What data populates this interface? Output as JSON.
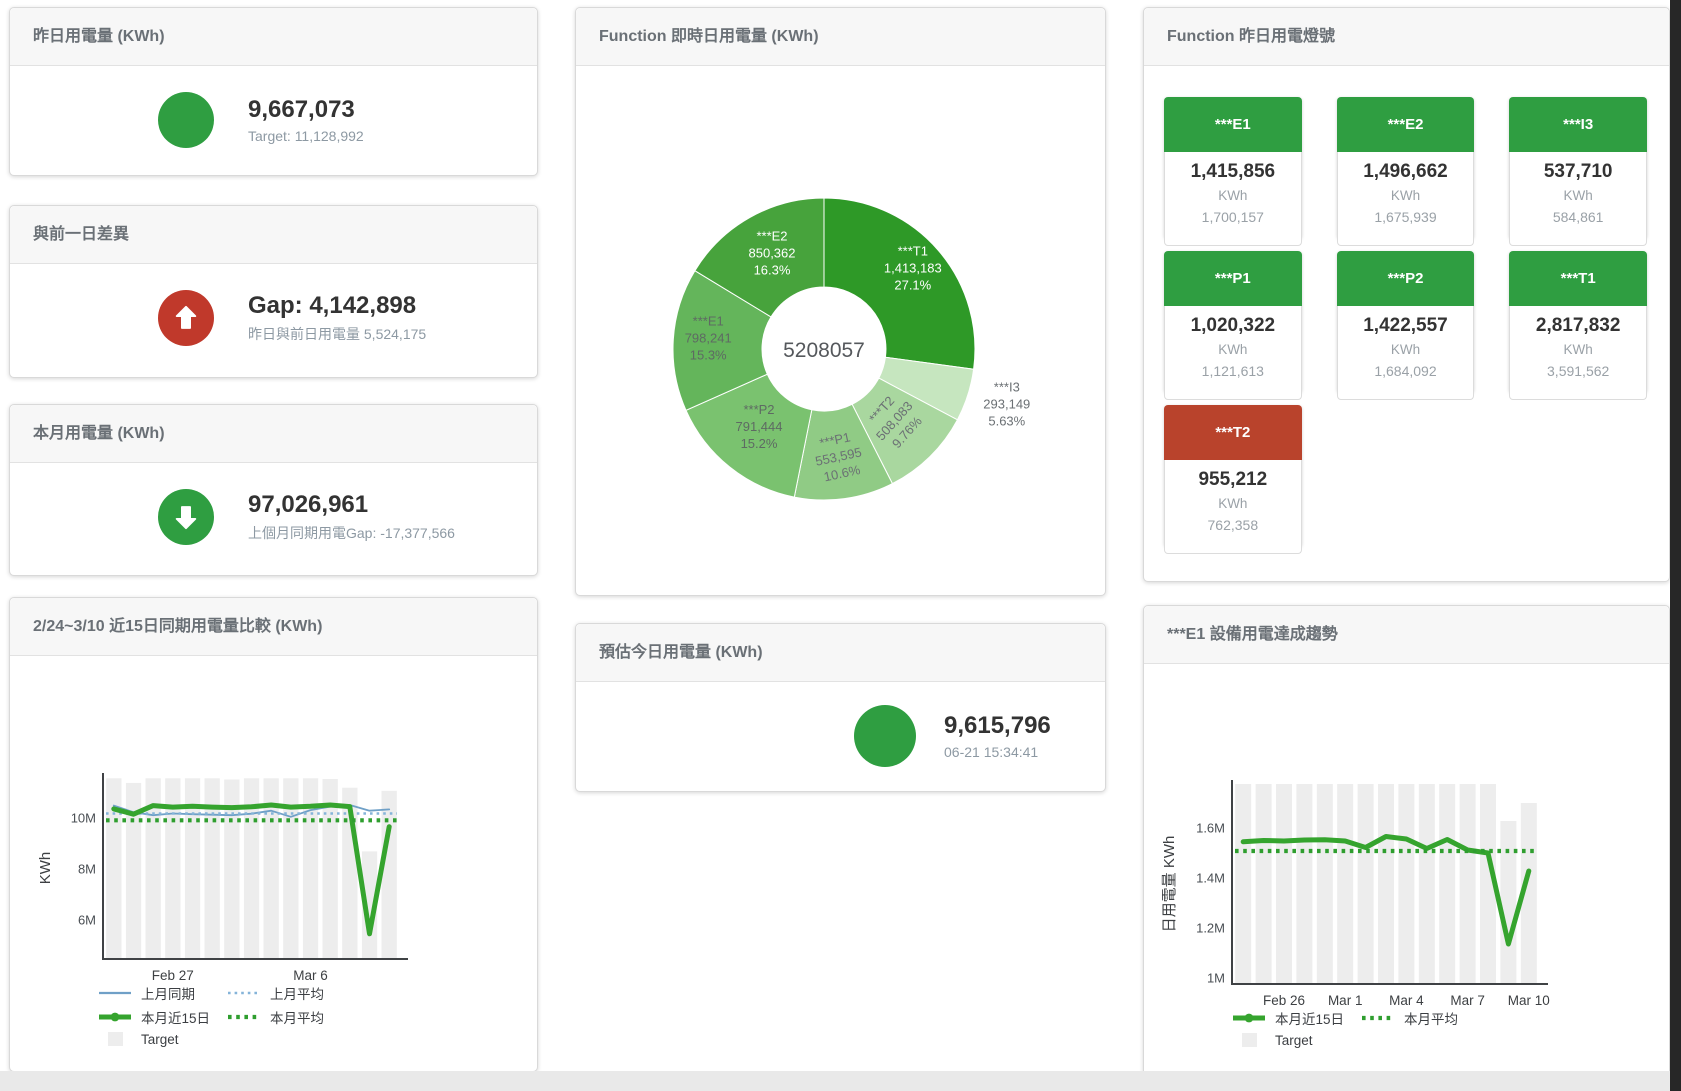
{
  "colors": {
    "green": "#2f9e41",
    "red": "#c0392b",
    "chart_green": "#35a42e",
    "chart_green_avg": "#2f9e2f",
    "chart_blue": "#6fa0c7",
    "chart_blue_avg": "#85b4d9",
    "target_bar": "#ededed"
  },
  "stat_panels": {
    "yesterday": {
      "title": "昨日用電量 (KWh)",
      "value": "9,667,073",
      "subtext": "Target: 11,128,992"
    },
    "day_gap": {
      "title": "與前一日差異",
      "value": "Gap: 4,142,898",
      "subtext": "昨日與前日用電量 5,524,175"
    },
    "month": {
      "title": "本月用電量 (KWh)",
      "value": "97,026,961",
      "subtext": "上個月同期用電Gap: -17,377,566"
    },
    "forecast": {
      "title": "預估今日用電量 (KWh)",
      "value": "9,615,796",
      "subtext": "06-21 15:34:41"
    }
  },
  "lights": {
    "title": "Function 昨日用電燈號",
    "tiles": [
      {
        "name": "***E1",
        "value": "1,415,856",
        "unit": "KWh",
        "target": "1,700,157",
        "status": "green"
      },
      {
        "name": "***E2",
        "value": "1,496,662",
        "unit": "KWh",
        "target": "1,675,939",
        "status": "green"
      },
      {
        "name": "***I3",
        "value": "537,710",
        "unit": "KWh",
        "target": "584,861",
        "status": "green"
      },
      {
        "name": "***P1",
        "value": "1,020,322",
        "unit": "KWh",
        "target": "1,121,613",
        "status": "green"
      },
      {
        "name": "***P2",
        "value": "1,422,557",
        "unit": "KWh",
        "target": "1,684,092",
        "status": "green"
      },
      {
        "name": "***T1",
        "value": "2,817,832",
        "unit": "KWh",
        "target": "3,591,562",
        "status": "green"
      },
      {
        "name": "***T2",
        "value": "955,212",
        "unit": "KWh",
        "target": "762,358",
        "status": "red"
      }
    ]
  },
  "chart_data": [
    {
      "type": "pie",
      "title": "Function 即時日用電量 (KWh)",
      "center_total": "5208057",
      "donut": true,
      "slices": [
        {
          "label": "***T1",
          "value": 1413183,
          "value_str": "1,413,183",
          "pct": "27.1%",
          "color": "#2e9927",
          "text_color": "#ffffff",
          "label_r": 118,
          "label_rotate": 0,
          "outside": false
        },
        {
          "label": "***I3",
          "value": 293149,
          "value_str": "293,149",
          "pct": "5.63%",
          "color": "#c6e6bf",
          "text_color": "#6b7074",
          "label_r": 192,
          "label_rotate": 0,
          "outside": true
        },
        {
          "label": "***T2",
          "value": 508083,
          "value_str": "508,083",
          "pct": "9.76%",
          "color": "#a9d79f",
          "text_color": "#6b7074",
          "label_r": 104,
          "label_rotate": -48,
          "outside": false
        },
        {
          "label": "***P1",
          "value": 553595,
          "value_str": "553,595",
          "pct": "10.6%",
          "color": "#90cb85",
          "text_color": "#6b7074",
          "label_r": 112,
          "label_rotate": -12,
          "outside": false
        },
        {
          "label": "***P2",
          "value": 791444,
          "value_str": "791,444",
          "pct": "15.2%",
          "color": "#7ac26f",
          "text_color": "#5e6a63",
          "label_r": 104,
          "label_rotate": 0,
          "outside": false
        },
        {
          "label": "***E1",
          "value": 798241,
          "value_str": "798,241",
          "pct": "15.3%",
          "color": "#64b55b",
          "text_color": "#5e6a63",
          "label_r": 116,
          "label_rotate": 0,
          "outside": false
        },
        {
          "label": "***E2",
          "value": 850362,
          "value_str": "850,362",
          "pct": "16.3%",
          "color": "#47a33c",
          "text_color": "#ffffff",
          "label_r": 106,
          "label_rotate": 0,
          "outside": false
        }
      ]
    },
    {
      "type": "line",
      "title": "2/24~3/10 近15日同期用電量比較 (KWh)",
      "ylabel": "KWh",
      "ylim": [
        4.5,
        11.6
      ],
      "yticks": [
        {
          "label": "6M",
          "v": 6
        },
        {
          "label": "8M",
          "v": 8
        },
        {
          "label": "10M",
          "v": 10
        }
      ],
      "xticks": [
        {
          "label": "Feb 27",
          "index": 3
        },
        {
          "label": "Mar 6",
          "index": 10
        }
      ],
      "target_bars": {
        "name": "Target",
        "color": "#ededed",
        "values": [
          11.55,
          11.37,
          11.55,
          11.55,
          11.55,
          11.55,
          11.5,
          11.55,
          11.55,
          11.55,
          11.55,
          11.52,
          11.18,
          8.68,
          11.06
        ]
      },
      "series": [
        {
          "name": "上月同期",
          "style": "line",
          "color": "#6fa0c7",
          "width": 1.8,
          "values": [
            10.48,
            10.22,
            10.1,
            10.17,
            10.14,
            10.12,
            10.1,
            10.16,
            10.28,
            10.04,
            10.3,
            10.44,
            10.5,
            10.28,
            10.33
          ]
        },
        {
          "name": "上月平均",
          "style": "dotted",
          "color": "#85b4d9",
          "width": 2.4,
          "avg": 10.17
        },
        {
          "name": "本月近15日",
          "style": "line",
          "color": "#35a42e",
          "width": 5,
          "values": [
            10.35,
            10.14,
            10.48,
            10.42,
            10.45,
            10.42,
            10.4,
            10.43,
            10.5,
            10.42,
            10.45,
            10.5,
            10.44,
            5.45,
            9.65
          ]
        },
        {
          "name": "本月平均",
          "style": "dotted",
          "color": "#2f9e2f",
          "width": 4.2,
          "avg": 9.9
        }
      ],
      "legend_rows": [
        [
          "上月同期",
          "上月平均"
        ],
        [
          "本月近15日",
          "本月平均"
        ],
        [
          "Target"
        ]
      ]
    },
    {
      "type": "line",
      "title": "***E1 設備用電達成趨勢",
      "ylabel": "日用電量 KWh",
      "ylim": [
        0.98,
        1.776
      ],
      "yticks": [
        {
          "label": "1M",
          "v": 1
        },
        {
          "label": "1.2M",
          "v": 1.2
        },
        {
          "label": "1.4M",
          "v": 1.4
        },
        {
          "label": "1.6M",
          "v": 1.6
        }
      ],
      "xticks": [
        {
          "label": "Feb 26",
          "index": 2
        },
        {
          "label": "Mar 1",
          "index": 5
        },
        {
          "label": "Mar 4",
          "index": 8
        },
        {
          "label": "Mar 7",
          "index": 11
        },
        {
          "label": "Mar 10",
          "index": 14
        }
      ],
      "target_bars": {
        "name": "Target",
        "color": "#ededed",
        "values": [
          1.776,
          1.776,
          1.776,
          1.776,
          1.776,
          1.776,
          1.776,
          1.776,
          1.776,
          1.776,
          1.776,
          1.776,
          1.776,
          1.628,
          1.7
        ]
      },
      "series": [
        {
          "name": "本月近15日",
          "style": "line",
          "color": "#35a42e",
          "width": 5,
          "values": [
            1.545,
            1.55,
            1.548,
            1.552,
            1.553,
            1.548,
            1.522,
            1.566,
            1.556,
            1.518,
            1.554,
            1.512,
            1.5,
            1.136,
            1.428
          ]
        },
        {
          "name": "本月平均",
          "style": "dotted",
          "color": "#2f9e2f",
          "width": 4.2,
          "avg": 1.508
        }
      ],
      "legend_rows": [
        [
          "本月近15日",
          "本月平均"
        ],
        [
          "Target"
        ]
      ]
    }
  ]
}
